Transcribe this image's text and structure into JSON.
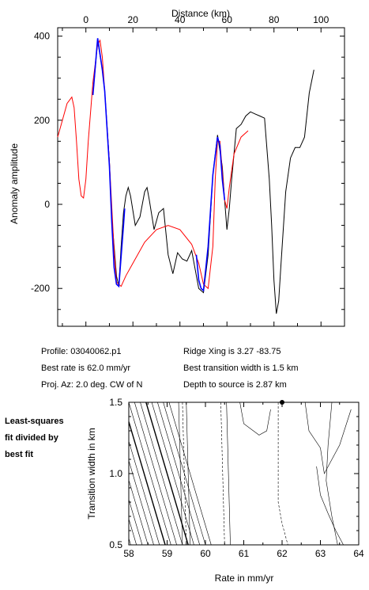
{
  "chart_data": [
    {
      "type": "line",
      "xlabel": "Distance (km)",
      "ylabel": "Anomaly amplitude",
      "xlim": [
        -12,
        110
      ],
      "ylim": [
        -290,
        420
      ],
      "xticks": [
        0,
        20,
        40,
        60,
        80,
        100
      ],
      "yticks": [
        -200,
        0,
        200,
        400
      ],
      "grid": false,
      "series": [
        {
          "color": "#000000",
          "points": [
            [
              3,
              260
            ],
            [
              5,
              390
            ],
            [
              7,
              320
            ],
            [
              8,
              270
            ],
            [
              10,
              100
            ],
            [
              11,
              -30
            ],
            [
              13,
              -170
            ],
            [
              14,
              -195
            ],
            [
              15,
              -100
            ],
            [
              16,
              -20
            ],
            [
              17,
              20
            ],
            [
              18,
              40
            ],
            [
              19,
              20
            ],
            [
              21,
              -50
            ],
            [
              23,
              -30
            ],
            [
              25,
              30
            ],
            [
              26,
              40
            ],
            [
              27,
              10
            ],
            [
              29,
              -60
            ],
            [
              31,
              -20
            ],
            [
              33,
              -10
            ],
            [
              35,
              -120
            ],
            [
              37,
              -165
            ],
            [
              39,
              -115
            ],
            [
              41,
              -130
            ],
            [
              43,
              -135
            ],
            [
              45,
              -110
            ],
            [
              48,
              -200
            ],
            [
              50,
              -210
            ],
            [
              52,
              -120
            ],
            [
              54,
              70
            ],
            [
              56,
              165
            ],
            [
              58,
              90
            ],
            [
              59,
              10
            ],
            [
              60,
              -60
            ],
            [
              61,
              -10
            ],
            [
              62,
              60
            ],
            [
              64,
              180
            ],
            [
              66,
              190
            ],
            [
              68,
              210
            ],
            [
              70,
              220
            ],
            [
              72,
              215
            ],
            [
              74,
              210
            ],
            [
              76,
              205
            ],
            [
              78,
              60
            ],
            [
              79,
              -50
            ],
            [
              80,
              -180
            ],
            [
              81,
              -260
            ],
            [
              82,
              -230
            ],
            [
              83,
              -140
            ],
            [
              85,
              30
            ],
            [
              87,
              110
            ],
            [
              89,
              135
            ],
            [
              91,
              135
            ],
            [
              93,
              160
            ],
            [
              95,
              265
            ],
            [
              97,
              320
            ]
          ]
        },
        {
          "color": "#ff0000",
          "points": [
            [
              -12,
              160
            ],
            [
              -10,
              200
            ],
            [
              -8,
              240
            ],
            [
              -6,
              255
            ],
            [
              -5,
              230
            ],
            [
              -4,
              150
            ],
            [
              -3,
              60
            ],
            [
              -2,
              20
            ],
            [
              -1,
              15
            ],
            [
              0,
              60
            ],
            [
              1,
              150
            ],
            [
              3,
              290
            ],
            [
              5,
              380
            ],
            [
              6,
              390
            ],
            [
              7,
              350
            ],
            [
              8,
              270
            ],
            [
              10,
              100
            ],
            [
              12,
              -110
            ],
            [
              13,
              -185
            ],
            [
              15,
              -195
            ],
            [
              17,
              -170
            ],
            [
              20,
              -140
            ],
            [
              25,
              -90
            ],
            [
              30,
              -60
            ],
            [
              35,
              -50
            ],
            [
              40,
              -60
            ],
            [
              45,
              -95
            ],
            [
              48,
              -140
            ],
            [
              50,
              -190
            ],
            [
              52,
              -200
            ],
            [
              54,
              -100
            ],
            [
              55,
              60
            ],
            [
              56,
              150
            ],
            [
              57,
              150
            ],
            [
              58,
              80
            ],
            [
              59,
              10
            ],
            [
              60,
              -10
            ],
            [
              61,
              40
            ],
            [
              63,
              120
            ],
            [
              66,
              160
            ],
            [
              69,
              175
            ]
          ]
        },
        {
          "color": "#0000ff",
          "points": [
            [
              3,
              260
            ],
            [
              5,
              395
            ],
            [
              7,
              320
            ],
            [
              8,
              270
            ],
            [
              10,
              90
            ],
            [
              11,
              -40
            ],
            [
              12,
              -150
            ],
            [
              13,
              -190
            ],
            [
              14,
              -195
            ],
            [
              16,
              -50
            ],
            [
              16.5,
              -10
            ]
          ]
        },
        {
          "color": "#0000ff",
          "points": [
            [
              47,
              -120
            ],
            [
              48,
              -180
            ],
            [
              49,
              -200
            ],
            [
              50,
              -205
            ],
            [
              52,
              -100
            ],
            [
              54,
              70
            ],
            [
              56,
              160
            ],
            [
              57,
              140
            ],
            [
              58,
              60
            ],
            [
              59,
              10
            ]
          ]
        }
      ]
    },
    {
      "type": "line",
      "xlabel": "Rate in mm/yr",
      "ylabel": "Transition width in km",
      "xlim": [
        58,
        64
      ],
      "ylim": [
        0.5,
        1.5
      ],
      "xticks": [
        58,
        59,
        60,
        61,
        62,
        63,
        64
      ],
      "yticks": [
        0.5,
        1.0,
        1.5
      ],
      "best_fit_marker": [
        62.0,
        1.5
      ]
    }
  ],
  "profile_info": {
    "profile": "Profile: 03040062.p1",
    "best_rate": "Best rate is 62.0 mm/yr",
    "proj_az": "Proj. Az: 2.0 deg. CW of N",
    "ridge_xing": "Ridge Xing is 3.27 -83.75",
    "best_transition": "Best transition width is 1.5 km",
    "depth_to_source": "Depth to source is   2.87 km"
  },
  "side_label": [
    "Least-squares",
    "fit divided by",
    "best fit"
  ]
}
